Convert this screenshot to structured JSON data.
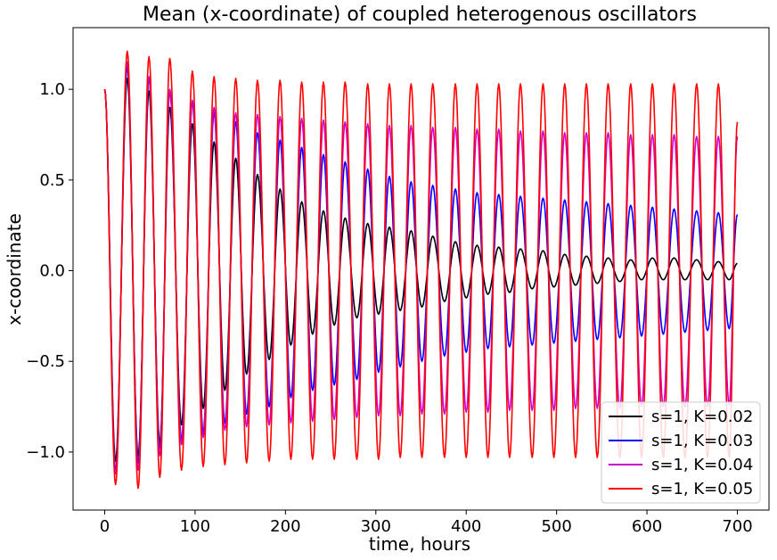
{
  "chart_data": {
    "type": "line",
    "title": "Mean (x-coordinate) of coupled heterogenous oscillators",
    "xlabel": "time, hours",
    "ylabel": "x-coordinate",
    "xlim": [
      -35,
      735
    ],
    "ylim": [
      -1.32,
      1.34
    ],
    "x_ticks": [
      0,
      100,
      200,
      300,
      400,
      500,
      600,
      700
    ],
    "x_tick_labels": [
      "0",
      "100",
      "200",
      "300",
      "400",
      "500",
      "600",
      "700"
    ],
    "y_ticks": [
      -1.0,
      -0.5,
      0.0,
      0.5,
      1.0
    ],
    "y_tick_labels": [
      "−1.0",
      "−0.5",
      "0.0",
      "0.5",
      "1.0"
    ],
    "period_hours": 24,
    "x_range": [
      0,
      700
    ],
    "grid": false,
    "legend_position": "lower right",
    "series": [
      {
        "name": "s=1, K=0.02",
        "color": "#000000",
        "peaks": [
          [
            25,
            1.06
          ],
          [
            49,
            0.99
          ],
          [
            72,
            0.9
          ],
          [
            97,
            0.81
          ],
          [
            121,
            0.71
          ],
          [
            145,
            0.62
          ],
          [
            169,
            0.53
          ],
          [
            194,
            0.45
          ],
          [
            218,
            0.38
          ],
          [
            242,
            0.33
          ],
          [
            266,
            0.29
          ],
          [
            291,
            0.26
          ],
          [
            315,
            0.24
          ],
          [
            339,
            0.22
          ],
          [
            363,
            0.19
          ],
          [
            388,
            0.16
          ],
          [
            412,
            0.14
          ],
          [
            436,
            0.13
          ],
          [
            460,
            0.12
          ],
          [
            485,
            0.11
          ],
          [
            509,
            0.09
          ],
          [
            533,
            0.08
          ],
          [
            557,
            0.07
          ],
          [
            582,
            0.06
          ],
          [
            606,
            0.07
          ],
          [
            630,
            0.07
          ],
          [
            655,
            0.06
          ],
          [
            679,
            0.05
          ],
          [
            700,
            0.04
          ]
        ],
        "troughs": [
          [
            12,
            -1.05
          ],
          [
            37,
            -1.02
          ],
          [
            61,
            -0.95
          ],
          [
            85,
            -0.85
          ],
          [
            109,
            -0.76
          ],
          [
            133,
            -0.66
          ],
          [
            157,
            -0.57
          ],
          [
            182,
            -0.49
          ],
          [
            206,
            -0.41
          ],
          [
            230,
            -0.35
          ],
          [
            254,
            -0.3
          ],
          [
            279,
            -0.26
          ],
          [
            303,
            -0.24
          ],
          [
            327,
            -0.22
          ],
          [
            351,
            -0.2
          ],
          [
            376,
            -0.17
          ],
          [
            400,
            -0.15
          ],
          [
            424,
            -0.13
          ],
          [
            448,
            -0.12
          ],
          [
            473,
            -0.1
          ],
          [
            497,
            -0.09
          ],
          [
            521,
            -0.08
          ],
          [
            545,
            -0.07
          ],
          [
            570,
            -0.06
          ],
          [
            594,
            -0.05
          ],
          [
            618,
            -0.05
          ],
          [
            642,
            -0.05
          ],
          [
            667,
            -0.05
          ],
          [
            691,
            -0.05
          ]
        ]
      },
      {
        "name": "s=1, K=0.03",
        "color": "#0000ff",
        "peaks": [
          [
            25,
            1.12
          ],
          [
            49,
            1.06
          ],
          [
            72,
            0.99
          ],
          [
            97,
            0.93
          ],
          [
            121,
            0.87
          ],
          [
            145,
            0.82
          ],
          [
            169,
            0.76
          ],
          [
            194,
            0.72
          ],
          [
            218,
            0.68
          ],
          [
            242,
            0.64
          ],
          [
            266,
            0.6
          ],
          [
            291,
            0.56
          ],
          [
            315,
            0.52
          ],
          [
            339,
            0.49
          ],
          [
            363,
            0.47
          ],
          [
            388,
            0.45
          ],
          [
            412,
            0.43
          ],
          [
            436,
            0.42
          ],
          [
            460,
            0.41
          ],
          [
            485,
            0.4
          ],
          [
            509,
            0.39
          ],
          [
            533,
            0.38
          ],
          [
            557,
            0.37
          ],
          [
            582,
            0.36
          ],
          [
            606,
            0.35
          ],
          [
            630,
            0.34
          ],
          [
            655,
            0.33
          ],
          [
            679,
            0.32
          ],
          [
            700,
            0.31
          ]
        ],
        "troughs": [
          [
            12,
            -1.1
          ],
          [
            37,
            -1.06
          ],
          [
            61,
            -0.98
          ],
          [
            85,
            -0.93
          ],
          [
            109,
            -0.89
          ],
          [
            133,
            -0.84
          ],
          [
            157,
            -0.79
          ],
          [
            182,
            -0.75
          ],
          [
            206,
            -0.7
          ],
          [
            230,
            -0.66
          ],
          [
            254,
            -0.63
          ],
          [
            279,
            -0.6
          ],
          [
            303,
            -0.56
          ],
          [
            327,
            -0.53
          ],
          [
            351,
            -0.5
          ],
          [
            376,
            -0.47
          ],
          [
            400,
            -0.45
          ],
          [
            424,
            -0.43
          ],
          [
            448,
            -0.42
          ],
          [
            473,
            -0.41
          ],
          [
            497,
            -0.4
          ],
          [
            521,
            -0.39
          ],
          [
            545,
            -0.38
          ],
          [
            570,
            -0.37
          ],
          [
            594,
            -0.36
          ],
          [
            618,
            -0.35
          ],
          [
            642,
            -0.34
          ],
          [
            667,
            -0.33
          ],
          [
            691,
            -0.32
          ]
        ]
      },
      {
        "name": "s=1, K=0.04",
        "color": "#cc00cc",
        "peaks": [
          [
            25,
            1.15
          ],
          [
            49,
            1.07
          ],
          [
            72,
            1.0
          ],
          [
            97,
            0.94
          ],
          [
            121,
            0.9
          ],
          [
            145,
            0.87
          ],
          [
            169,
            0.86
          ],
          [
            194,
            0.85
          ],
          [
            218,
            0.84
          ],
          [
            242,
            0.83
          ],
          [
            266,
            0.82
          ],
          [
            291,
            0.81
          ],
          [
            315,
            0.8
          ],
          [
            339,
            0.8
          ],
          [
            363,
            0.79
          ],
          [
            388,
            0.79
          ],
          [
            412,
            0.78
          ],
          [
            436,
            0.78
          ],
          [
            460,
            0.77
          ],
          [
            485,
            0.77
          ],
          [
            509,
            0.76
          ],
          [
            533,
            0.76
          ],
          [
            557,
            0.76
          ],
          [
            582,
            0.75
          ],
          [
            606,
            0.75
          ],
          [
            630,
            0.75
          ],
          [
            655,
            0.74
          ],
          [
            679,
            0.74
          ],
          [
            700,
            0.74
          ]
        ],
        "troughs": [
          [
            12,
            -1.12
          ],
          [
            37,
            -1.1
          ],
          [
            61,
            -1.02
          ],
          [
            85,
            -0.96
          ],
          [
            109,
            -0.92
          ],
          [
            133,
            -0.88
          ],
          [
            157,
            -0.86
          ],
          [
            182,
            -0.85
          ],
          [
            206,
            -0.84
          ],
          [
            230,
            -0.83
          ],
          [
            254,
            -0.82
          ],
          [
            279,
            -0.81
          ],
          [
            303,
            -0.8
          ],
          [
            327,
            -0.8
          ],
          [
            351,
            -0.79
          ],
          [
            376,
            -0.79
          ],
          [
            400,
            -0.78
          ],
          [
            424,
            -0.78
          ],
          [
            448,
            -0.77
          ],
          [
            473,
            -0.77
          ],
          [
            497,
            -0.77
          ],
          [
            521,
            -0.76
          ],
          [
            545,
            -0.76
          ],
          [
            570,
            -0.76
          ],
          [
            594,
            -0.75
          ],
          [
            618,
            -0.75
          ],
          [
            642,
            -0.75
          ],
          [
            667,
            -0.75
          ],
          [
            691,
            -0.74
          ]
        ]
      },
      {
        "name": "s=1, K=0.05",
        "color": "#ff0000",
        "peaks": [
          [
            25,
            1.21
          ],
          [
            49,
            1.18
          ],
          [
            72,
            1.17
          ],
          [
            97,
            1.1
          ],
          [
            121,
            1.07
          ],
          [
            145,
            1.06
          ],
          [
            169,
            1.05
          ],
          [
            194,
            1.05
          ],
          [
            218,
            1.04
          ],
          [
            242,
            1.04
          ],
          [
            266,
            1.04
          ],
          [
            291,
            1.03
          ],
          [
            315,
            1.03
          ],
          [
            339,
            1.03
          ],
          [
            363,
            1.03
          ],
          [
            388,
            1.03
          ],
          [
            412,
            1.03
          ],
          [
            436,
            1.03
          ],
          [
            460,
            1.03
          ],
          [
            485,
            1.03
          ],
          [
            509,
            1.03
          ],
          [
            533,
            1.03
          ],
          [
            557,
            1.03
          ],
          [
            582,
            1.03
          ],
          [
            606,
            1.03
          ],
          [
            630,
            1.03
          ],
          [
            655,
            1.03
          ],
          [
            679,
            1.03
          ],
          [
            700,
            0.82
          ]
        ],
        "troughs": [
          [
            12,
            -1.18
          ],
          [
            37,
            -1.2
          ],
          [
            61,
            -1.14
          ],
          [
            85,
            -1.1
          ],
          [
            109,
            -1.08
          ],
          [
            133,
            -1.07
          ],
          [
            157,
            -1.06
          ],
          [
            182,
            -1.05
          ],
          [
            206,
            -1.04
          ],
          [
            230,
            -1.04
          ],
          [
            254,
            -1.04
          ],
          [
            279,
            -1.04
          ],
          [
            303,
            -1.04
          ],
          [
            327,
            -1.03
          ],
          [
            351,
            -1.03
          ],
          [
            376,
            -1.03
          ],
          [
            400,
            -1.03
          ],
          [
            424,
            -1.03
          ],
          [
            448,
            -1.03
          ],
          [
            473,
            -1.03
          ],
          [
            497,
            -1.03
          ],
          [
            521,
            -1.03
          ],
          [
            545,
            -1.03
          ],
          [
            570,
            -1.03
          ],
          [
            594,
            -1.03
          ],
          [
            618,
            -1.03
          ],
          [
            642,
            -1.03
          ],
          [
            667,
            -1.03
          ],
          [
            691,
            -1.03
          ]
        ]
      }
    ]
  }
}
